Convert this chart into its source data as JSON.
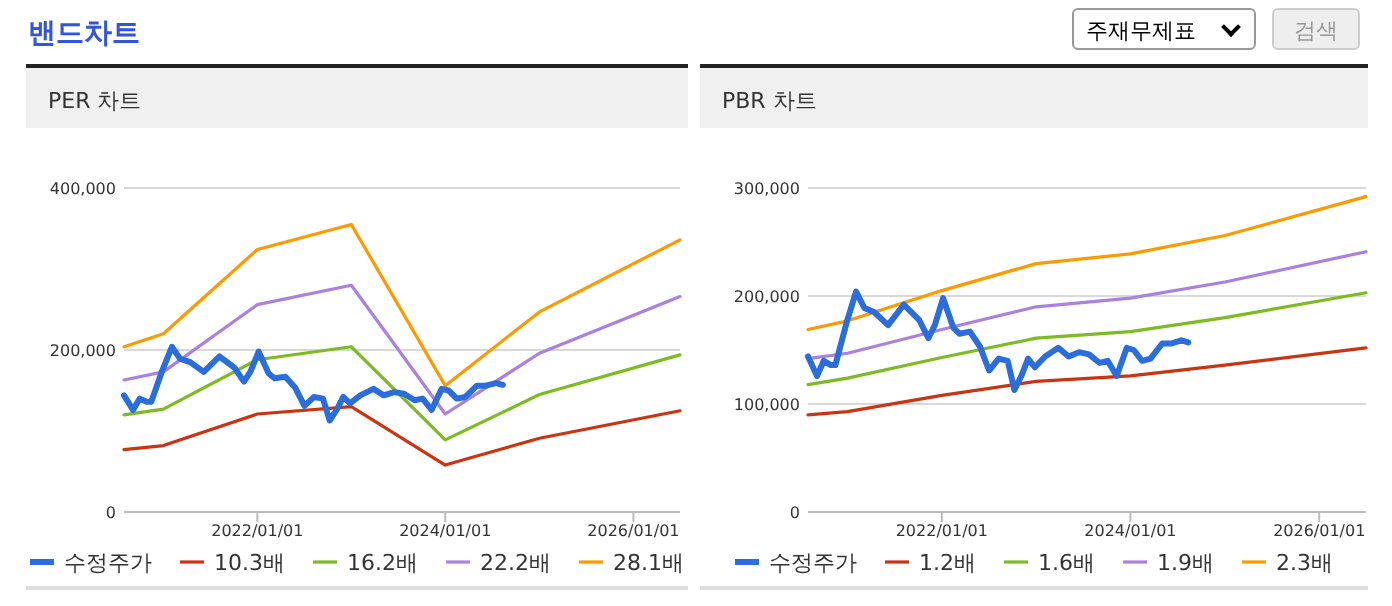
{
  "chart_data": [
    {
      "type": "line",
      "title": "PER 차트",
      "annotations": [
        "밴드차트",
        "주재무제표",
        "검색"
      ],
      "xlim": [
        "2020-08",
        "2026-07"
      ],
      "ylim": [
        0,
        400000
      ],
      "xticks": [
        {
          "value": "2022-01-01",
          "label": "2022/01/01"
        },
        {
          "value": "2024-01-01",
          "label": "2024/01/01"
        },
        {
          "value": "2026-01-01",
          "label": "2026/01/01"
        }
      ],
      "yticks": [
        {
          "value": 0,
          "label": "0"
        },
        {
          "value": 200000,
          "label": "200,000"
        },
        {
          "value": 400000,
          "label": "400,000"
        }
      ],
      "grid": "y",
      "legend": "bottom",
      "series": [
        {
          "name": "수정주가",
          "color": "#2a6ddb",
          "x": [
            "2020-08-01",
            "2020-09-05",
            "2020-10-01",
            "2020-10-28",
            "2020-11-15",
            "2020-12-28",
            "2021-02-03",
            "2021-03-07",
            "2021-04-15",
            "2021-06-07",
            "2021-08-07",
            "2021-10-05",
            "2021-11-10",
            "2021-12-05",
            "2022-01-06",
            "2022-02-14",
            "2022-03-10",
            "2022-04-20",
            "2022-05-29",
            "2022-07-03",
            "2022-08-09",
            "2022-09-13",
            "2022-10-09",
            "2022-11-05",
            "2022-12-01",
            "2022-12-27",
            "2023-02-05",
            "2023-03-28",
            "2023-05-07",
            "2023-06-16",
            "2023-07-25",
            "2023-09-04",
            "2023-10-05",
            "2023-11-09",
            "2023-12-18",
            "2024-01-14",
            "2024-02-15",
            "2024-03-19",
            "2024-05-03",
            "2024-06-06",
            "2024-07-16",
            "2024-08-12"
          ],
          "values": [
            144000,
            126000,
            140000,
            136000,
            136000,
            175000,
            204000,
            189000,
            185000,
            173000,
            192000,
            178000,
            161000,
            173000,
            198000,
            171000,
            165000,
            167000,
            153000,
            131000,
            142000,
            140000,
            113000,
            126000,
            142000,
            134000,
            144000,
            152000,
            144000,
            148000,
            146000,
            138000,
            140000,
            126000,
            152000,
            150000,
            140000,
            142000,
            156000,
            156000,
            159000,
            157000
          ]
        },
        {
          "name": "10.3배",
          "color": "#cc3311",
          "x": [
            "2020-08",
            "2021-01",
            "2022-01",
            "2023-01",
            "2024-01",
            "2025-01",
            "2026-07"
          ],
          "values": [
            77000,
            82000,
            121000,
            130000,
            58000,
            91000,
            125000
          ]
        },
        {
          "name": "16.2배",
          "color": "#7cbb22",
          "x": [
            "2020-08",
            "2021-01",
            "2022-01",
            "2023-01",
            "2024-01",
            "2025-01",
            "2026-07"
          ],
          "values": [
            120000,
            127000,
            188000,
            204000,
            89000,
            145000,
            194000
          ]
        },
        {
          "name": "22.2배",
          "color": "#aa80e0",
          "x": [
            "2020-08",
            "2021-01",
            "2022-01",
            "2023-01",
            "2024-01",
            "2025-01",
            "2026-07"
          ],
          "values": [
            163000,
            173000,
            256000,
            280000,
            121000,
            196000,
            266000
          ]
        },
        {
          "name": "28.1배",
          "color": "#ff9900",
          "x": [
            "2020-08",
            "2021-01",
            "2022-01",
            "2023-01",
            "2024-01",
            "2025-01",
            "2026-07"
          ],
          "values": [
            204000,
            220000,
            324000,
            355000,
            156000,
            247000,
            336000
          ]
        }
      ]
    },
    {
      "type": "line",
      "title": "PBR 차트",
      "xlim": [
        "2020-08",
        "2026-07"
      ],
      "ylim": [
        0,
        300000
      ],
      "xticks": [
        {
          "value": "2022-01-01",
          "label": "2022/01/01"
        },
        {
          "value": "2024-01-01",
          "label": "2024/01/01"
        },
        {
          "value": "2026-01-01",
          "label": "2026/01/01"
        }
      ],
      "yticks": [
        {
          "value": 0,
          "label": "0"
        },
        {
          "value": 100000,
          "label": "100,000"
        },
        {
          "value": 200000,
          "label": "200,000"
        },
        {
          "value": 300000,
          "label": "300,000"
        }
      ],
      "grid": "y",
      "legend": "bottom",
      "series": [
        {
          "name": "수정주가",
          "color": "#2a6ddb",
          "x": [
            "2020-08-01",
            "2020-09-05",
            "2020-10-01",
            "2020-10-28",
            "2020-11-15",
            "2020-12-28",
            "2021-02-03",
            "2021-03-07",
            "2021-04-15",
            "2021-06-07",
            "2021-08-07",
            "2021-10-05",
            "2021-11-10",
            "2021-12-05",
            "2022-01-06",
            "2022-02-14",
            "2022-03-10",
            "2022-04-20",
            "2022-05-29",
            "2022-07-03",
            "2022-08-09",
            "2022-09-13",
            "2022-10-09",
            "2022-11-05",
            "2022-12-01",
            "2022-12-27",
            "2023-02-05",
            "2023-03-28",
            "2023-05-07",
            "2023-06-16",
            "2023-07-25",
            "2023-09-04",
            "2023-10-05",
            "2023-11-09",
            "2023-12-18",
            "2024-01-14",
            "2024-02-15",
            "2024-03-19",
            "2024-05-03",
            "2024-06-06",
            "2024-07-16",
            "2024-08-12"
          ],
          "values": [
            144000,
            126000,
            140000,
            136000,
            136000,
            175000,
            204000,
            189000,
            185000,
            173000,
            192000,
            178000,
            161000,
            173000,
            198000,
            171000,
            165000,
            167000,
            153000,
            131000,
            142000,
            140000,
            113000,
            126000,
            142000,
            134000,
            144000,
            152000,
            144000,
            148000,
            146000,
            138000,
            140000,
            126000,
            152000,
            150000,
            140000,
            142000,
            156000,
            156000,
            159000,
            157000
          ]
        },
        {
          "name": "1.2배",
          "color": "#cc3311",
          "x": [
            "2020-08",
            "2021-01",
            "2022-01",
            "2023-01",
            "2024-01",
            "2025-01",
            "2026-07"
          ],
          "values": [
            90000,
            93000,
            108000,
            121000,
            126000,
            136000,
            152000
          ]
        },
        {
          "name": "1.6배",
          "color": "#7cbb22",
          "x": [
            "2020-08",
            "2021-01",
            "2022-01",
            "2023-01",
            "2024-01",
            "2025-01",
            "2026-07"
          ],
          "values": [
            118000,
            124000,
            143000,
            161000,
            167000,
            180000,
            203000
          ]
        },
        {
          "name": "1.9배",
          "color": "#aa80e0",
          "x": [
            "2020-08",
            "2021-01",
            "2022-01",
            "2023-01",
            "2024-01",
            "2025-01",
            "2026-07"
          ],
          "values": [
            142000,
            147000,
            169000,
            190000,
            198000,
            213000,
            241000
          ]
        },
        {
          "name": "2.3배",
          "color": "#ff9900",
          "x": [
            "2020-08",
            "2021-01",
            "2022-01",
            "2023-01",
            "2024-01",
            "2025-01",
            "2026-07"
          ],
          "values": [
            169000,
            177000,
            205000,
            230000,
            239000,
            256000,
            292000
          ]
        }
      ]
    }
  ]
}
